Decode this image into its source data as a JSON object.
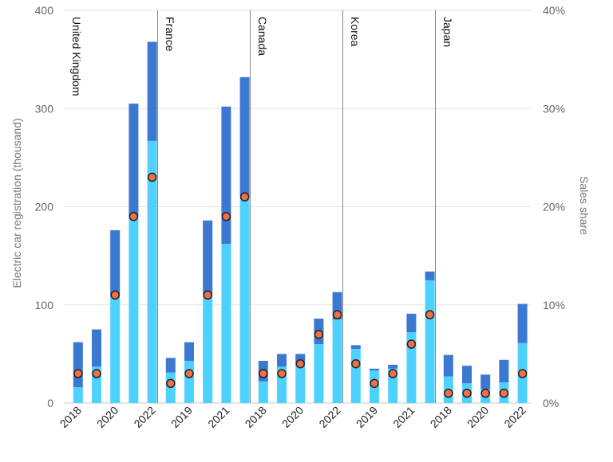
{
  "chart_data": {
    "type": "bar",
    "stacked": true,
    "ylabel": "Electric car registration (thousand)",
    "y2label": "Sales share",
    "ylim": [
      0,
      400
    ],
    "y_ticks": [
      "0",
      "100",
      "200",
      "300",
      "400"
    ],
    "y2lim": [
      0,
      40
    ],
    "y2_ticks": [
      "0%",
      "10%",
      "20%",
      "30%",
      "40%"
    ],
    "colors": {
      "bev": "#4dd2ff",
      "phev": "#3b78d2",
      "share_marker": "#f06e48",
      "divider": "#888888",
      "grid": "#e4e4e4"
    },
    "panels": [
      {
        "name": "United Kingdom",
        "years": [
          "2018",
          "2019",
          "2020",
          "2021",
          "2022"
        ],
        "x_labels": [
          "2018",
          "",
          "2020",
          "",
          "2022"
        ],
        "bev": [
          16,
          37,
          108,
          190,
          267
        ],
        "phev": [
          46,
          38,
          68,
          115,
          101
        ],
        "share": [
          3,
          3,
          11,
          19,
          23
        ]
      },
      {
        "name": "France",
        "years": [
          "2018",
          "2019",
          "2020",
          "2021",
          "2022"
        ],
        "x_labels": [
          "",
          "2019",
          "",
          "2021",
          ""
        ],
        "bev": [
          31,
          43,
          111,
          162,
          210
        ],
        "phev": [
          15,
          19,
          75,
          140,
          122
        ],
        "share": [
          2,
          3,
          11,
          19,
          21
        ]
      },
      {
        "name": "Canada",
        "years": [
          "2018",
          "2019",
          "2020",
          "2021",
          "2022"
        ],
        "x_labels": [
          "2018",
          "",
          "2020",
          "",
          "2022"
        ],
        "bev": [
          22,
          37,
          40,
          60,
          85
        ],
        "phev": [
          21,
          13,
          10,
          26,
          28
        ],
        "share": [
          3,
          3,
          4,
          7,
          9
        ]
      },
      {
        "name": "Korea",
        "years": [
          "2018",
          "2019",
          "2020",
          "2021",
          "2022"
        ],
        "x_labels": [
          "",
          "2019",
          "",
          "2021",
          ""
        ],
        "bev": [
          55,
          33,
          35,
          72,
          125
        ],
        "phev": [
          4,
          2,
          4,
          19,
          9
        ],
        "share": [
          4,
          2,
          3,
          6,
          9
        ]
      },
      {
        "name": "Japan",
        "years": [
          "2018",
          "2019",
          "2020",
          "2021",
          "2022"
        ],
        "x_labels": [
          "2018",
          "",
          "2020",
          "",
          "2022"
        ],
        "bev": [
          27,
          20,
          14,
          21,
          61
        ],
        "phev": [
          22,
          18,
          15,
          23,
          40
        ],
        "share": [
          1,
          1,
          1,
          1,
          3
        ]
      }
    ]
  }
}
